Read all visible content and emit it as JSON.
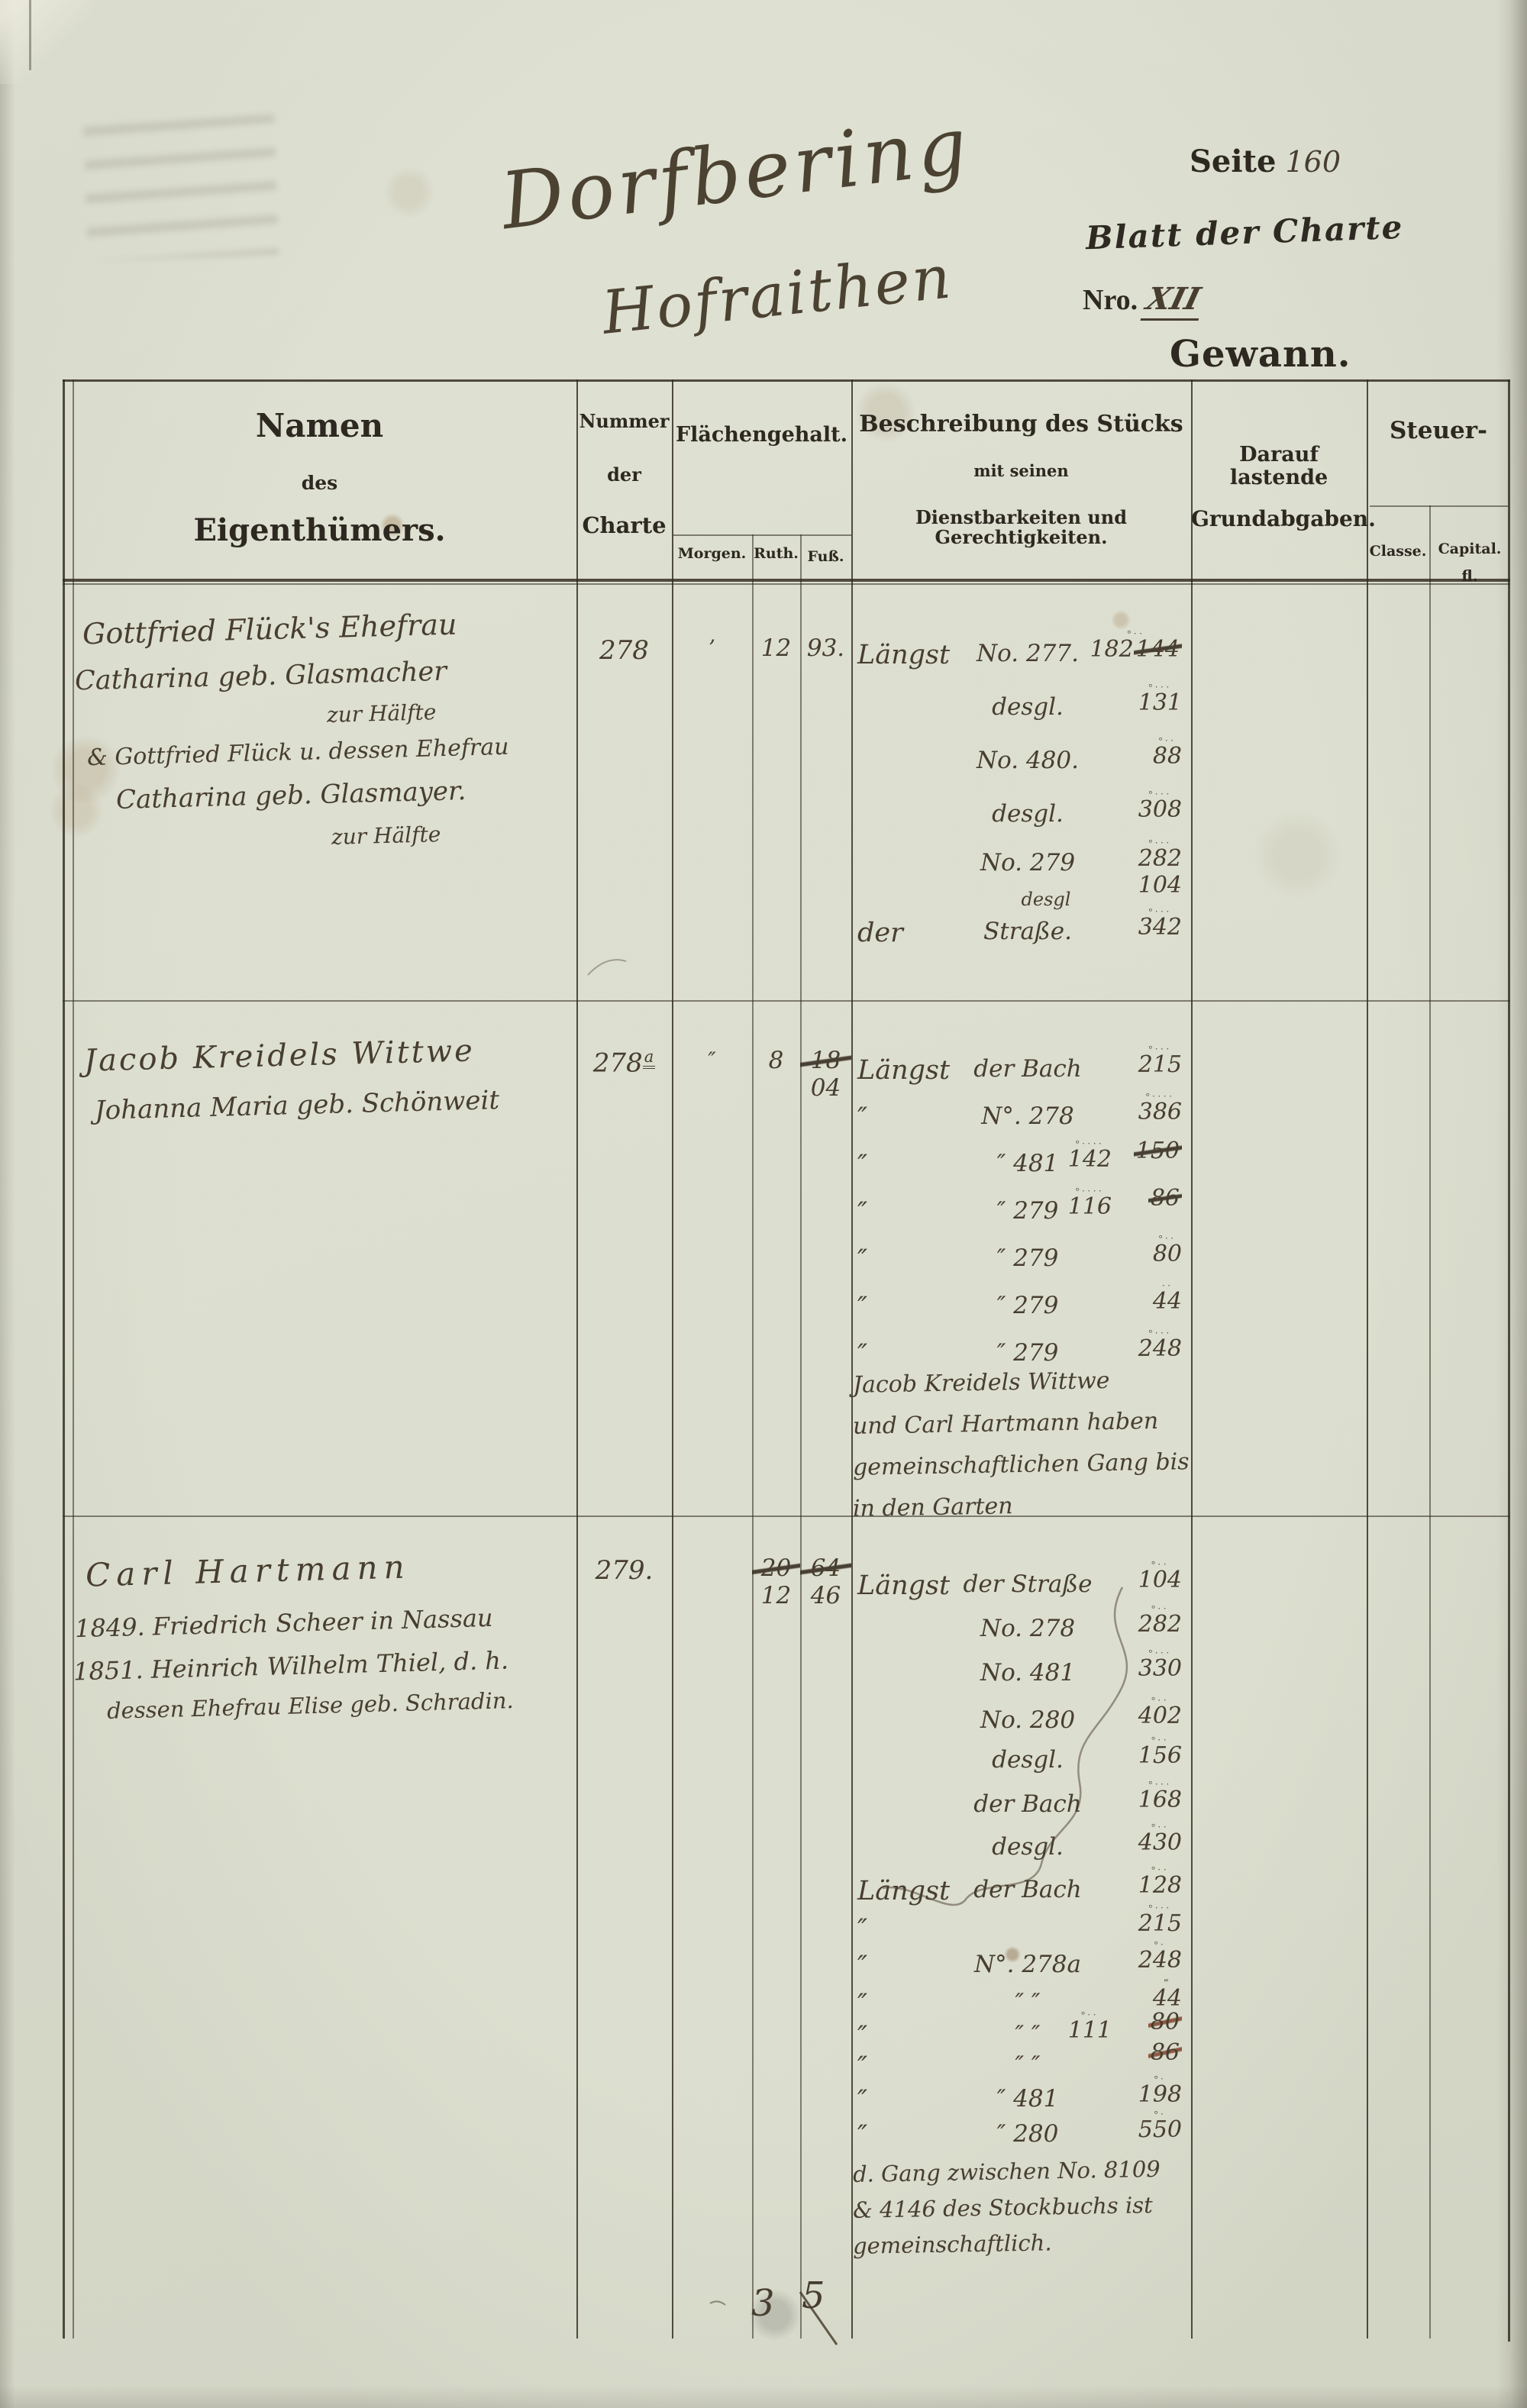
{
  "page": {
    "title_line1": "Dorfbering",
    "title_line2": "Hofraithen",
    "seite_label": "Seite",
    "seite_value": "160",
    "blatt_label": "Blatt der Charte",
    "nro_label": "Nro.",
    "nro_value": "XII",
    "gewann_label": "Gewann."
  },
  "table": {
    "headers": {
      "namen_1": "Namen",
      "namen_2": "des",
      "namen_3": "Eigenthümers.",
      "nummer_1": "Nummer",
      "nummer_2": "der",
      "nummer_3": "Charte",
      "flaeche": "Flächengehalt.",
      "sub_morgen": "Morgen.",
      "sub_ruth": "Ruth.",
      "sub_fuss": "Fuß.",
      "beschr_1": "Beschreibung des Stücks",
      "beschr_2": "mit seinen",
      "beschr_3": "Dienstbarkeiten und Gerechtigkeiten.",
      "grund_1": "Darauf lastende",
      "grund_2": "Grundabgaben.",
      "steuer": "Steuer-",
      "sub_classe": "Classe.",
      "sub_capital": "Capital.",
      "sub_fl": "fl."
    },
    "rows": [
      {
        "owner_lines": [
          "Gottfried Flück's Ehefrau",
          "Catharina geb. Glasmacher",
          "zur Hälfte",
          "& Gottfried Flück u. dessen Ehefrau",
          "Catharina geb. Glasmayer.",
          "zur Hälfte"
        ],
        "charte": {
          "main": "278"
        },
        "morgen": "’",
        "ruth": {
          "new": "12"
        },
        "fuss": {
          "new": "93."
        },
        "desc": [
          {
            "a": "Längst",
            "b": "No. 277.",
            "marks": "°··",
            "num": "182",
            "old": "144",
            "mode": "old-below"
          },
          {
            "b": "desgl.",
            "marks": "°···",
            "num": "131"
          },
          {
            "b": "No. 480.",
            "marks": "°··",
            "num": "88"
          },
          {
            "b": "desgl.",
            "marks": "°···",
            "num": "308"
          },
          {
            "b": "No. 279",
            "marks": "°···",
            "num": "282"
          },
          {
            "b": "desgl",
            "num": "104",
            "small": true
          },
          {
            "a": "der",
            "b": "Straße.",
            "marks": "°···",
            "num": "342"
          }
        ]
      },
      {
        "owner_lines": [
          "Jacob Kreidels Wittwe",
          "Johanna Maria geb. Schönweit"
        ],
        "charte": {
          "main": "278",
          "sup": "a"
        },
        "morgen": "″",
        "ruth": {
          "new": "8"
        },
        "fuss": {
          "old": "18",
          "new": "04"
        },
        "desc": [
          {
            "a": "Längst",
            "b": "der Bach",
            "marks": "°···",
            "num": "215"
          },
          {
            "a": "″",
            "b": "N°. 278",
            "marks": "°····",
            "num": "386"
          },
          {
            "a": "″",
            "b": "″  481",
            "marks": "°····",
            "num": "142",
            "old": "150",
            "mode": "old-right"
          },
          {
            "a": "″",
            "b": "″  279",
            "marks": "°····",
            "num": "116",
            "old": "86",
            "mode": "old-right"
          },
          {
            "a": "″",
            "b": "″  279",
            "marks": "°··",
            "num": "80"
          },
          {
            "a": "″",
            "b": "″  279",
            "marks": "··",
            "num": "44"
          },
          {
            "a": "″",
            "b": "″  279",
            "marks": "°···",
            "num": "248"
          }
        ],
        "notes": [
          "Jacob Kreidels Wittwe",
          "und Carl Hartmann haben",
          "gemeinschaftlichen Gang bis",
          "in den Garten"
        ]
      },
      {
        "owner_lines": [
          "Carl Hartmann",
          "1849. Friedrich Scheer in Nassau",
          "1851. Heinrich Wilhelm Thiel, d. h.",
          "dessen Ehefrau Elise geb. Schradin."
        ],
        "charte": {
          "main": "279."
        },
        "morgen": "",
        "ruth": {
          "old": "20",
          "new": "12"
        },
        "fuss": {
          "old": "64",
          "new": "46"
        },
        "desc": [
          {
            "a": "Längst",
            "b": "der Straße",
            "marks": "°··",
            "num": "104"
          },
          {
            "b": "No. 278",
            "marks": "°··",
            "num": "282"
          },
          {
            "b": "No. 481",
            "marks": "°···",
            "num": "330"
          },
          {
            "b": "No. 280",
            "marks": "°··",
            "num": "402"
          },
          {
            "b": "desgl.",
            "marks": "°··",
            "num": "156"
          },
          {
            "b": "der Bach",
            "marks": "°···",
            "num": "168"
          },
          {
            "b": "desgl.",
            "marks": "°··",
            "num": "430"
          },
          {
            "a": "Längst",
            "b": "der Bach",
            "marks": "°··",
            "num": "128"
          },
          {
            "a": "″",
            "marks": "°···",
            "num": "215"
          },
          {
            "a": "″",
            "b": "N°. 278a",
            "marks": "°·",
            "num": "248"
          },
          {
            "a": "″",
            "b": "″   ″",
            "marks": "‴",
            "num": "44"
          },
          {
            "a": "″",
            "b": "″   ″",
            "marks": "°··",
            "num": "111",
            "old": "80",
            "mode": "old-right",
            "oldred": true
          },
          {
            "a": "″",
            "b": "″   ″",
            "old": "86",
            "mode": "old-only",
            "oldred": true
          },
          {
            "a": "″",
            "b": "″  481",
            "marks": "°·",
            "num": "198"
          },
          {
            "a": "″",
            "b": "″  280",
            "marks": "°·",
            "num": "550"
          }
        ],
        "notes": [
          "d. Gang zwischen No. 8109",
          "& 4146 des Stockbuchs ist",
          "gemeinschaftlich."
        ]
      }
    ],
    "sum": {
      "ruth": "3",
      "fuss": "5"
    }
  }
}
